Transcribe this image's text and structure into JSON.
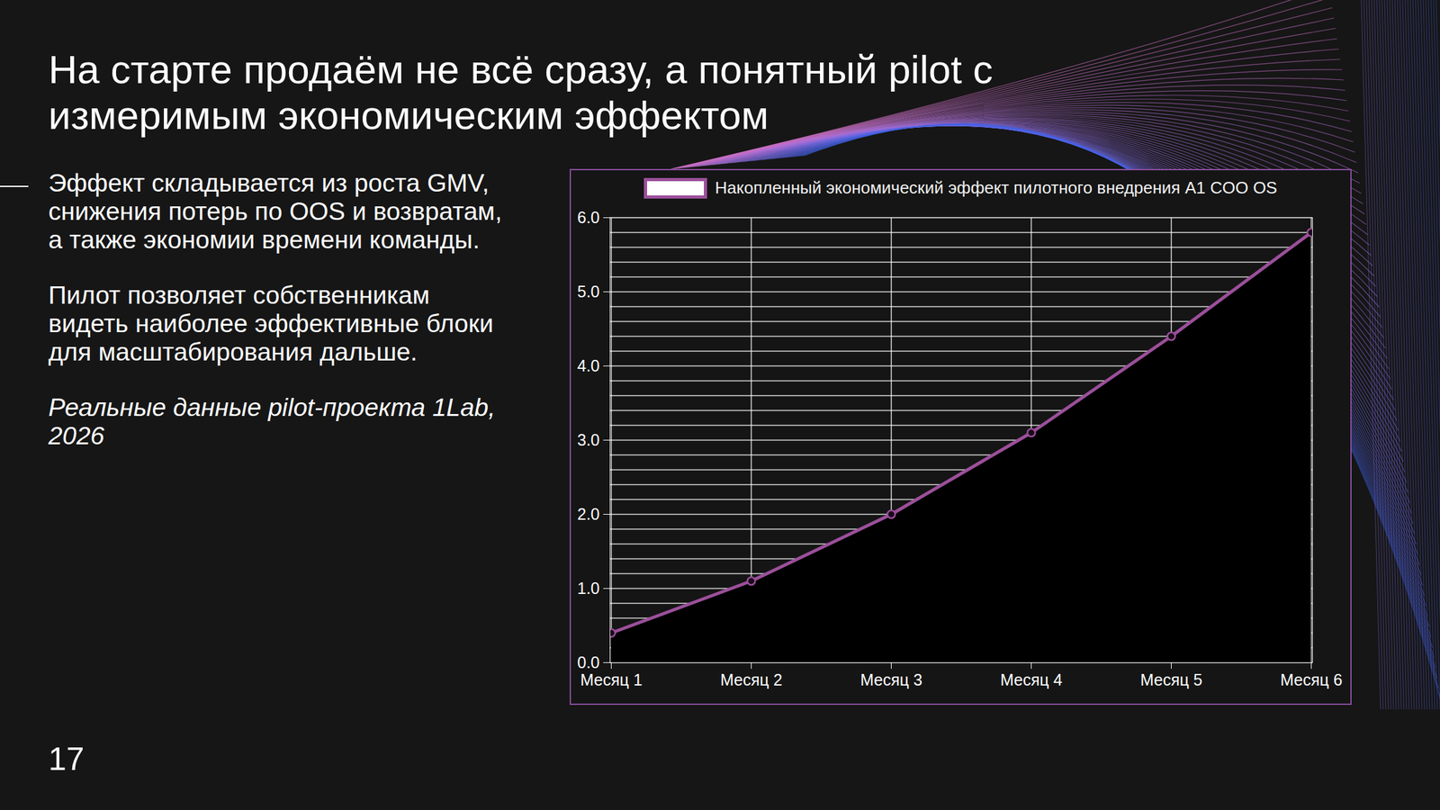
{
  "slide": {
    "title": "На старте продаём не всё сразу, а понятный pilot с измеримым экономическим эффектом",
    "paragraphs": [
      "Эффект складывается из роста GMV, снижения потерь по OOS и возвратам, а также экономии времени команды.",
      "Пилот позволяет собственникам видеть наиболее эффективные блоки для масштабирования дальше."
    ],
    "note": "Реальные данные pilot-проекта 1Lab, 2026",
    "page": 17
  },
  "chart_data": {
    "type": "area",
    "categories": [
      "Месяц 1",
      "Месяц 2",
      "Месяц 3",
      "Месяц 4",
      "Месяц 5",
      "Месяц 6"
    ],
    "series": [
      {
        "name": "Накопленный экономический эффект пилотного внедрения A1 COO OS",
        "color": "#9b4f9a",
        "marker": "circle",
        "values": [
          0.4,
          1.1,
          2.0,
          3.1,
          4.4,
          5.8
        ]
      }
    ],
    "ylim": [
      0,
      6
    ],
    "yticks": [
      0,
      1,
      2,
      3,
      4,
      5,
      6
    ],
    "grid": true,
    "legend": "top"
  }
}
